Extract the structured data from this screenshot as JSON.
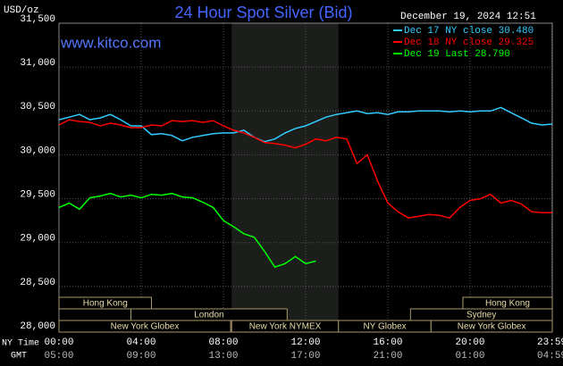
{
  "chart_data": {
    "type": "line",
    "title": "24 Hour Spot Silver (Bid)",
    "timestamp": "December 19, 2024 12:51",
    "website": "www.kitco.com",
    "y_label": "USD/oz",
    "x_label": "NY Time",
    "x2_label": "GMT",
    "background": "#000000",
    "grid": true,
    "legend": "upper right",
    "xlim": [
      0,
      24
    ],
    "ylim": [
      28000,
      31500
    ],
    "xticks": [
      {
        "value": 0,
        "label": "00:00"
      },
      {
        "value": 4,
        "label": "04:00"
      },
      {
        "value": 8,
        "label": "08:00"
      },
      {
        "value": 12,
        "label": "12:00"
      },
      {
        "value": 16,
        "label": "16:00"
      },
      {
        "value": 20,
        "label": "20:00"
      },
      {
        "value": 23.98,
        "label": "23:59"
      }
    ],
    "x2ticks": [
      {
        "value": 0,
        "label": "05:00"
      },
      {
        "value": 4,
        "label": "09:00"
      },
      {
        "value": 8,
        "label": "13:00"
      },
      {
        "value": 12,
        "label": "17:00"
      },
      {
        "value": 16,
        "label": "21:00"
      },
      {
        "value": 20,
        "label": "01:00"
      },
      {
        "value": 23.98,
        "label": "04:59"
      }
    ],
    "yticks": [
      {
        "value": 28000,
        "label": "28,000"
      },
      {
        "value": 28500,
        "label": "28,500"
      },
      {
        "value": 29000,
        "label": "29,000"
      },
      {
        "value": 29500,
        "label": "29,500"
      },
      {
        "value": 30000,
        "label": "30,000"
      },
      {
        "value": 30500,
        "label": "30,500"
      },
      {
        "value": 31000,
        "label": "31,000"
      },
      {
        "value": 31500,
        "label": "31,500"
      }
    ],
    "x": [
      0,
      0.5,
      1,
      1.5,
      2,
      2.5,
      3,
      3.5,
      4,
      4.5,
      5,
      5.5,
      6,
      6.5,
      7,
      7.5,
      8,
      8.5,
      9,
      9.5,
      10,
      10.5,
      11,
      11.5,
      12,
      12.5,
      13,
      13.5,
      14,
      14.5,
      15,
      15.5,
      16,
      16.5,
      17,
      17.5,
      18,
      18.5,
      19,
      19.5,
      20,
      20.5,
      21,
      21.5,
      22,
      22.5,
      23,
      23.5,
      24
    ],
    "series": [
      {
        "name": "Dec 17 NY close 30.480",
        "color": "#33ccff",
        "values": [
          30400,
          30430,
          30460,
          30400,
          30420,
          30460,
          30400,
          30330,
          30330,
          30230,
          30240,
          30220,
          30160,
          30200,
          30220,
          30240,
          30250,
          30250,
          30280,
          30200,
          30150,
          30180,
          30250,
          30300,
          30330,
          30380,
          30430,
          30460,
          30480,
          30500,
          30470,
          30480,
          30460,
          30490,
          30490,
          30500,
          30500,
          30500,
          30490,
          30500,
          30490,
          30500,
          30500,
          30540,
          30480,
          30420,
          30360,
          30340,
          30350
        ]
      },
      {
        "name": "Dec 18 NY close 29.325",
        "color": "#ff0000",
        "values": [
          30340,
          30400,
          30380,
          30370,
          30330,
          30360,
          30340,
          30310,
          30310,
          30340,
          30330,
          30390,
          30380,
          30390,
          30370,
          30390,
          30330,
          30280,
          30250,
          30200,
          30140,
          30130,
          30110,
          30080,
          30120,
          30180,
          30160,
          30200,
          30180,
          29900,
          30000,
          29700,
          29450,
          29350,
          29280,
          29300,
          29320,
          29310,
          29280,
          29400,
          29480,
          29500,
          29550,
          29450,
          29480,
          29440,
          29350,
          29340,
          29340
        ]
      },
      {
        "name": "Dec 19 Last 28.790",
        "color": "#00ff00",
        "values": [
          29400,
          29450,
          29380,
          29510,
          29530,
          29560,
          29520,
          29540,
          29510,
          29550,
          29540,
          29560,
          29520,
          29510,
          29460,
          29400,
          29250,
          29180,
          29100,
          29060,
          28900,
          28720,
          28760,
          28840,
          28760,
          28790,
          null,
          null,
          null,
          null,
          null,
          null,
          null,
          null,
          null,
          null,
          null,
          null,
          null,
          null,
          null,
          null,
          null,
          null,
          null,
          null,
          null,
          null,
          null
        ]
      }
    ],
    "sessions": [
      {
        "label": "Hong Kong",
        "start": 0,
        "end": 4.5,
        "row": 1
      },
      {
        "label": "London",
        "start": 3.5,
        "end": 11.1,
        "row": 2
      },
      {
        "label": "New York Globex",
        "start": 0,
        "end": 8.35,
        "row": 3
      },
      {
        "label": "New York NYMEX",
        "start": 8.4,
        "end": 13.6,
        "row": 3,
        "highlight": true
      },
      {
        "label": "NY Globex",
        "start": 13.6,
        "end": 18.1,
        "row": 3
      },
      {
        "label": "Hong Kong",
        "start": 19.65,
        "end": 24,
        "row": 1
      },
      {
        "label": "Sydney",
        "start": 17.1,
        "end": 24,
        "row": 2
      },
      {
        "label": "New York Globex",
        "start": 18.1,
        "end": 24,
        "row": 3
      }
    ]
  }
}
